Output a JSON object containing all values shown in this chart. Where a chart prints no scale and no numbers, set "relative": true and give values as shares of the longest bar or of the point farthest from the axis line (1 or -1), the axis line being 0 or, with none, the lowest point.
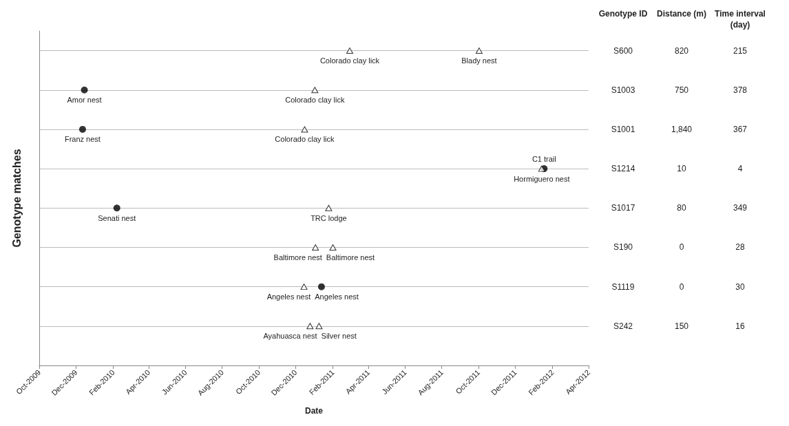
{
  "chart_data": [
    {
      "type": "scatter",
      "relative": true,
      "xlabel": "Date",
      "ylabel": "Genotype matches",
      "grid": "y",
      "xlim": [
        "2009-10-01",
        "2012-04-01"
      ],
      "xticks": [
        {
          "value": "2009-10-01",
          "label": "Oct-2009"
        },
        {
          "value": "2009-12-01",
          "label": "Dec-2009"
        },
        {
          "value": "2010-02-01",
          "label": "Feb-2010"
        },
        {
          "value": "2010-04-01",
          "label": "Apr-2010"
        },
        {
          "value": "2010-06-01",
          "label": "Jun-2010"
        },
        {
          "value": "2010-08-01",
          "label": "Aug-2010"
        },
        {
          "value": "2010-10-01",
          "label": "Oct-2010"
        },
        {
          "value": "2010-12-01",
          "label": "Dec-2010"
        },
        {
          "value": "2011-02-01",
          "label": "Feb-2011"
        },
        {
          "value": "2011-04-01",
          "label": "Apr-2011"
        },
        {
          "value": "2011-06-01",
          "label": "Jun-2011"
        },
        {
          "value": "2011-08-01",
          "label": "Aug-2011"
        },
        {
          "value": "2011-10-01",
          "label": "Oct-2011"
        },
        {
          "value": "2011-12-01",
          "label": "Dec-2011"
        },
        {
          "value": "2012-02-01",
          "label": "Feb-2012"
        },
        {
          "value": "2012-04-01",
          "label": "Apr-2012"
        }
      ],
      "series": [
        {
          "color": "#000000",
          "marker": "circle",
          "x": [
            "2009-12-15",
            "2009-12-12",
            "2012-01-18",
            "2010-02-07",
            "2011-01-13"
          ],
          "values": [
            0.875,
            0.75,
            0.625,
            0.5,
            0.25
          ]
        },
        {
          "color": "#000000",
          "marker": "triangle",
          "x": [
            "2011-03-01",
            "2011-10-02",
            "2011-01-02",
            "2010-12-16",
            "2012-01-14",
            "2011-01-25",
            "2011-01-03",
            "2011-02-01",
            "2010-12-15",
            "2010-12-25",
            "2011-01-09"
          ],
          "values": [
            1,
            1,
            0.875,
            0.75,
            0.625,
            0.5,
            0.375,
            0.375,
            0.25,
            0.125,
            0.125
          ]
        }
      ],
      "annotations": [
        {
          "text": "Colorado clay lick",
          "x": "2011-03-01",
          "y": 1
        },
        {
          "text": "Blady nest",
          "x": "2011-10-02",
          "y": 1
        },
        {
          "text": "Amor nest",
          "x": "2009-12-15",
          "y": 0.875
        },
        {
          "text": "Colorado clay lick",
          "x": "2011-01-02",
          "y": 0.875
        },
        {
          "text": "Franz nest",
          "x": "2009-12-12",
          "y": 0.75
        },
        {
          "text": "Colorado clay lick",
          "x": "2010-12-16",
          "y": 0.75
        },
        {
          "text": "Hormiguero nest",
          "x": "2012-01-14",
          "y": 0.625
        },
        {
          "text": "C1 trail",
          "x": "2012-01-18",
          "y": 0.625
        },
        {
          "text": "Senati nest",
          "x": "2010-02-07",
          "y": 0.5
        },
        {
          "text": "TRC lodge",
          "x": "2011-01-25",
          "y": 0.5
        },
        {
          "text": "Baltimore nest",
          "x": "2011-01-03",
          "y": 0.375
        },
        {
          "text": "Baltimore nest",
          "x": "2011-02-01",
          "y": 0.375
        },
        {
          "text": "Angeles nest",
          "x": "2010-12-15",
          "y": 0.25
        },
        {
          "text": "Angeles nest",
          "x": "2011-01-13",
          "y": 0.25
        },
        {
          "text": "Ayahuasca nest",
          "x": "2010-12-25",
          "y": 0.125
        },
        {
          "text": "Silver nest",
          "x": "2011-01-09",
          "y": 0.125
        }
      ]
    },
    {
      "type": "other",
      "annotations": [
        "Genotype ID",
        "Distance (m)",
        "Time interval (day)",
        "S600",
        "820",
        "215",
        "S1003",
        "750",
        "378",
        "S1001",
        "1,840",
        "367",
        "S1214",
        "10",
        "4",
        "S1017",
        "80",
        "349",
        "S190",
        "0",
        "28",
        "S1119",
        "0",
        "30",
        "S242",
        "150",
        "16"
      ]
    }
  ]
}
